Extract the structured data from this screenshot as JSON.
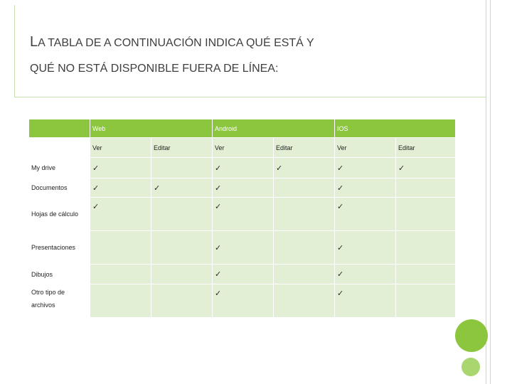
{
  "slide": {
    "title_line1_cap": "L",
    "title_line1_rest": "A TABLA DE A CONTINUACIÓN INDICA QUÉ ESTÁ Y",
    "title_line2": "QUÉ NO ESTÁ DISPONIBLE FUERA DE LÍNEA:"
  },
  "table": {
    "platforms": [
      "Web",
      "Android",
      "IOS"
    ],
    "subheaders": [
      "Ver",
      "Editar",
      "Ver",
      "Editar",
      "Ver",
      "Editar"
    ],
    "check_symbol": "✓",
    "rows": [
      {
        "label": "My drive",
        "cells": [
          true,
          false,
          true,
          true,
          true,
          true
        ]
      },
      {
        "label": "Documentos",
        "cells": [
          true,
          true,
          true,
          false,
          true,
          false
        ]
      },
      {
        "label": "Hojas de cálculo",
        "cells": [
          true,
          false,
          true,
          false,
          true,
          false
        ]
      },
      {
        "label": "Presentaciones",
        "cells": [
          false,
          false,
          true,
          false,
          true,
          false
        ]
      },
      {
        "label": "Dibujos",
        "cells": [
          false,
          false,
          true,
          false,
          true,
          false
        ]
      },
      {
        "label": "Otro tipo de archivos",
        "cells": [
          false,
          false,
          true,
          false,
          true,
          false
        ]
      }
    ]
  },
  "colors": {
    "header_green": "#8cc63f",
    "cell_light_green": "#e2efd4",
    "frame_line": "#c9dfae"
  }
}
